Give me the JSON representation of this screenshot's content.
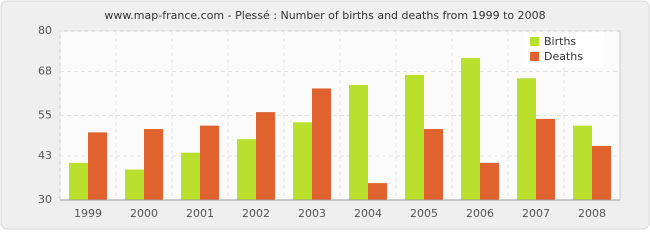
{
  "chart_data": {
    "type": "bar",
    "title": "www.map-france.com - Plessé : Number of births and deaths from 1999 to 2008",
    "categories": [
      "1999",
      "2000",
      "2001",
      "2002",
      "2003",
      "2004",
      "2005",
      "2006",
      "2007",
      "2008"
    ],
    "series": [
      {
        "name": "Births",
        "color": "#b8e02c",
        "values": [
          41,
          39,
          44,
          48,
          53,
          64,
          67,
          72,
          66,
          52
        ]
      },
      {
        "name": "Deaths",
        "color": "#e0622e",
        "values": [
          50,
          51,
          52,
          56,
          63,
          35,
          51,
          41,
          54,
          46
        ]
      }
    ],
    "ylim": [
      30,
      80
    ],
    "yticks": [
      30,
      43,
      55,
      68,
      80
    ],
    "grid": true,
    "legend": "top-right"
  }
}
